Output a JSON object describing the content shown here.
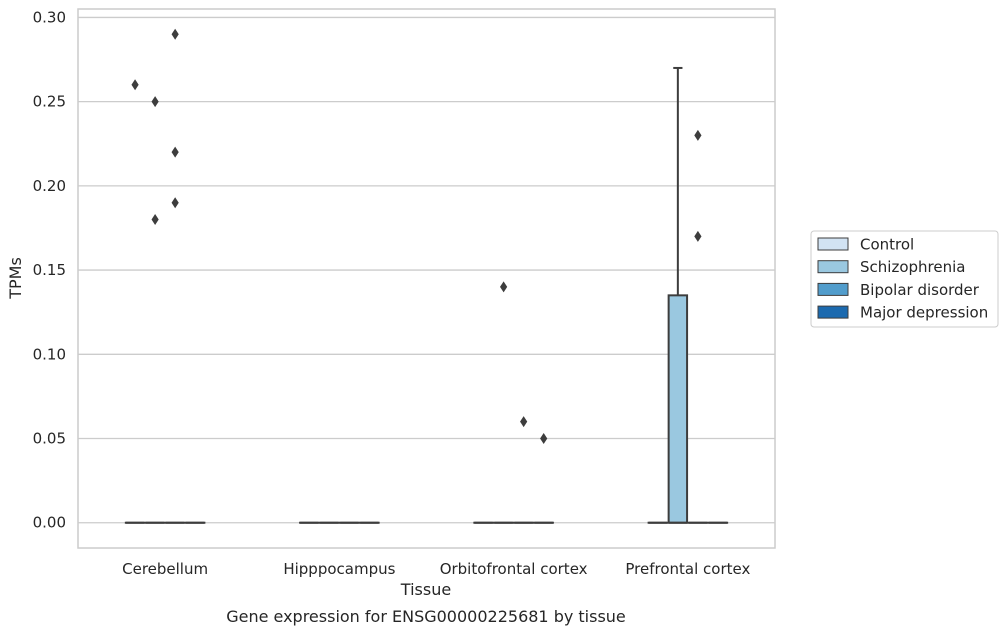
{
  "chart_data": {
    "type": "box",
    "title": "",
    "caption": "Gene expression for ENSG00000225681 by tissue",
    "xlabel": "Tissue",
    "ylabel": "TPMs",
    "ylim": [
      -0.015,
      0.305
    ],
    "yticks": [
      0.0,
      0.05,
      0.1,
      0.15,
      0.2,
      0.25,
      0.3
    ],
    "ytick_labels": [
      "0.00",
      "0.05",
      "0.10",
      "0.15",
      "0.20",
      "0.25",
      "0.30"
    ],
    "grid": "horizontal",
    "legend_placement": "right, outside",
    "categories": [
      "Cerebellum",
      "Hipppocampus",
      "Orbitofrontal cortex",
      "Prefrontal cortex"
    ],
    "series": [
      {
        "name": "Control",
        "color": "#d2e3f3",
        "boxes": [
          {
            "category": "Cerebellum",
            "q1": 0,
            "median": 0,
            "q3": 0,
            "whisker_low": 0,
            "whisker_high": 0,
            "outliers": [
              0.26
            ]
          },
          {
            "category": "Hipppocampus",
            "q1": 0,
            "median": 0,
            "q3": 0,
            "whisker_low": 0,
            "whisker_high": 0,
            "outliers": []
          },
          {
            "category": "Orbitofrontal cortex",
            "q1": 0,
            "median": 0,
            "q3": 0,
            "whisker_low": 0,
            "whisker_high": 0,
            "outliers": []
          },
          {
            "category": "Prefrontal cortex",
            "q1": 0,
            "median": 0,
            "q3": 0,
            "whisker_low": 0,
            "whisker_high": 0,
            "outliers": []
          }
        ]
      },
      {
        "name": "Schizophrenia",
        "color": "#9ac8e0",
        "boxes": [
          {
            "category": "Cerebellum",
            "q1": 0,
            "median": 0,
            "q3": 0,
            "whisker_low": 0,
            "whisker_high": 0,
            "outliers": [
              0.25,
              0.18
            ]
          },
          {
            "category": "Hipppocampus",
            "q1": 0,
            "median": 0,
            "q3": 0,
            "whisker_low": 0,
            "whisker_high": 0,
            "outliers": []
          },
          {
            "category": "Orbitofrontal cortex",
            "q1": 0,
            "median": 0,
            "q3": 0,
            "whisker_low": 0,
            "whisker_high": 0,
            "outliers": [
              0.14
            ]
          },
          {
            "category": "Prefrontal cortex",
            "q1": 0,
            "median": 0,
            "q3": 0.135,
            "whisker_low": 0,
            "whisker_high": 0.27,
            "outliers": []
          }
        ]
      },
      {
        "name": "Bipolar disorder",
        "color": "#529dcc",
        "boxes": [
          {
            "category": "Cerebellum",
            "q1": 0,
            "median": 0,
            "q3": 0,
            "whisker_low": 0,
            "whisker_high": 0,
            "outliers": [
              0.29,
              0.22,
              0.19
            ]
          },
          {
            "category": "Hipppocampus",
            "q1": 0,
            "median": 0,
            "q3": 0,
            "whisker_low": 0,
            "whisker_high": 0,
            "outliers": []
          },
          {
            "category": "Orbitofrontal cortex",
            "q1": 0,
            "median": 0,
            "q3": 0,
            "whisker_low": 0,
            "whisker_high": 0,
            "outliers": [
              0.06
            ]
          },
          {
            "category": "Prefrontal cortex",
            "q1": 0,
            "median": 0,
            "q3": 0,
            "whisker_low": 0,
            "whisker_high": 0,
            "outliers": [
              0.23,
              0.17
            ]
          }
        ]
      },
      {
        "name": "Major depression",
        "color": "#1c6aaf",
        "boxes": [
          {
            "category": "Cerebellum",
            "q1": 0,
            "median": 0,
            "q3": 0,
            "whisker_low": 0,
            "whisker_high": 0,
            "outliers": []
          },
          {
            "category": "Hipppocampus",
            "q1": 0,
            "median": 0,
            "q3": 0,
            "whisker_low": 0,
            "whisker_high": 0,
            "outliers": []
          },
          {
            "category": "Orbitofrontal cortex",
            "q1": 0,
            "median": 0,
            "q3": 0,
            "whisker_low": 0,
            "whisker_high": 0,
            "outliers": [
              0.05
            ]
          },
          {
            "category": "Prefrontal cortex",
            "q1": 0,
            "median": 0,
            "q3": 0,
            "whisker_low": 0,
            "whisker_high": 0,
            "outliers": []
          }
        ]
      }
    ]
  }
}
